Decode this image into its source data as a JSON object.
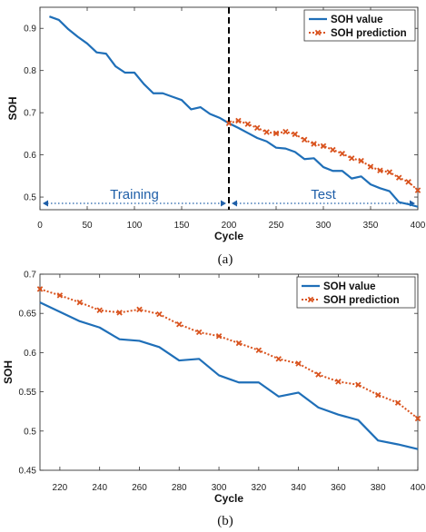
{
  "colors": {
    "value": "#1f6fb8",
    "prediction": "#d9531e",
    "divider": "#000000",
    "region": "#1f5fa8"
  },
  "chart_data": [
    {
      "type": "line",
      "caption": "(a)",
      "xlabel": "Cycle",
      "ylabel": "SOH",
      "xlim": [
        0,
        400
      ],
      "ylim": [
        0.47,
        0.95
      ],
      "xticks": [
        0,
        50,
        100,
        150,
        200,
        250,
        300,
        350,
        400
      ],
      "yticks": [
        0.5,
        0.6,
        0.7,
        0.8,
        0.9
      ],
      "ytick_labels": [
        "0.5",
        "0.6",
        "0.7",
        "0.8",
        "0.9"
      ],
      "grid": false,
      "legend_position": "top-right",
      "divider_x": 200,
      "regions": [
        {
          "label": "Training",
          "from": 0,
          "to": 200
        },
        {
          "label": "Test",
          "from": 200,
          "to": 400
        }
      ],
      "series": [
        {
          "name": "SOH value",
          "style": "solid",
          "x": [
            10,
            20,
            30,
            40,
            50,
            60,
            70,
            80,
            90,
            100,
            110,
            120,
            130,
            140,
            150,
            160,
            170,
            180,
            190,
            200,
            210,
            220,
            230,
            240,
            250,
            260,
            270,
            280,
            290,
            300,
            310,
            320,
            330,
            340,
            350,
            360,
            370,
            380,
            390,
            400
          ],
          "y": [
            0.928,
            0.92,
            0.898,
            0.88,
            0.864,
            0.843,
            0.84,
            0.81,
            0.795,
            0.795,
            0.768,
            0.746,
            0.746,
            0.738,
            0.73,
            0.708,
            0.713,
            0.697,
            0.688,
            0.675,
            0.664,
            0.652,
            0.64,
            0.632,
            0.617,
            0.615,
            0.607,
            0.59,
            0.592,
            0.571,
            0.562,
            0.562,
            0.544,
            0.549,
            0.53,
            0.521,
            0.514,
            0.488,
            0.483,
            0.477
          ]
        },
        {
          "name": "SOH prediction",
          "style": "dotted-markers",
          "x": [
            200,
            210,
            220,
            230,
            240,
            250,
            260,
            270,
            280,
            290,
            300,
            310,
            320,
            330,
            340,
            350,
            360,
            370,
            380,
            390,
            400
          ],
          "y": [
            0.675,
            0.681,
            0.673,
            0.664,
            0.654,
            0.651,
            0.655,
            0.649,
            0.636,
            0.626,
            0.621,
            0.612,
            0.603,
            0.592,
            0.586,
            0.572,
            0.563,
            0.559,
            0.546,
            0.536,
            0.516
          ]
        }
      ]
    },
    {
      "type": "line",
      "caption": "(b)",
      "xlabel": "Cycle",
      "ylabel": "SOH",
      "xlim": [
        210,
        400
      ],
      "ylim": [
        0.45,
        0.7
      ],
      "xticks": [
        220,
        240,
        260,
        280,
        300,
        320,
        340,
        360,
        380,
        400
      ],
      "yticks": [
        0.45,
        0.5,
        0.55,
        0.6,
        0.65,
        0.7
      ],
      "ytick_labels": [
        "0.45",
        "0.5",
        "0.55",
        "0.6",
        "0.65",
        "0.7"
      ],
      "grid": false,
      "legend_position": "top-right",
      "series": [
        {
          "name": "SOH value",
          "style": "solid",
          "x": [
            210,
            220,
            230,
            240,
            250,
            260,
            270,
            280,
            290,
            300,
            310,
            320,
            330,
            340,
            350,
            360,
            370,
            380,
            390,
            400
          ],
          "y": [
            0.664,
            0.652,
            0.64,
            0.632,
            0.617,
            0.615,
            0.607,
            0.59,
            0.592,
            0.571,
            0.562,
            0.562,
            0.544,
            0.549,
            0.53,
            0.521,
            0.514,
            0.488,
            0.483,
            0.477
          ]
        },
        {
          "name": "SOH prediction",
          "style": "dotted-markers",
          "x": [
            210,
            220,
            230,
            240,
            250,
            260,
            270,
            280,
            290,
            300,
            310,
            320,
            330,
            340,
            350,
            360,
            370,
            380,
            390,
            400
          ],
          "y": [
            0.681,
            0.673,
            0.664,
            0.654,
            0.651,
            0.655,
            0.649,
            0.636,
            0.626,
            0.621,
            0.612,
            0.603,
            0.592,
            0.586,
            0.572,
            0.563,
            0.559,
            0.546,
            0.536,
            0.516
          ]
        }
      ]
    }
  ]
}
